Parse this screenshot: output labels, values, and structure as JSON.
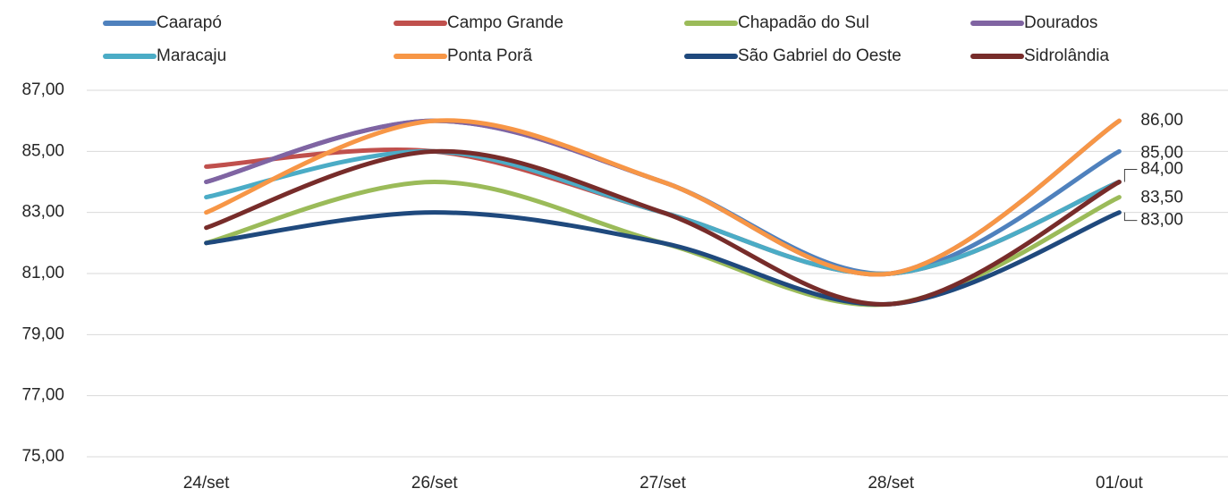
{
  "chart_data": {
    "type": "line",
    "categories": [
      "24/set",
      "26/set",
      "27/set",
      "28/set",
      "01/out"
    ],
    "ylim": [
      75,
      87
    ],
    "yticks": [
      {
        "value": 75,
        "label": "75,00"
      },
      {
        "value": 77,
        "label": "77,00"
      },
      {
        "value": 79,
        "label": "79,00"
      },
      {
        "value": 81,
        "label": "81,00"
      },
      {
        "value": 83,
        "label": "83,00"
      },
      {
        "value": 85,
        "label": "85,00"
      },
      {
        "value": 87,
        "label": "87,00"
      }
    ],
    "grid": true,
    "smooth": true,
    "legend": "top",
    "series": [
      {
        "name": "Caarapó",
        "color": "#4f81bd",
        "values": [
          84,
          86,
          84,
          81,
          85
        ],
        "value_labels": [
          null,
          null,
          null,
          null,
          "85,00"
        ]
      },
      {
        "name": "Campo Grande",
        "color": "#c0504d",
        "values": [
          84.5,
          85,
          83,
          81,
          84
        ]
      },
      {
        "name": "Chapadão do Sul",
        "color": "#9bbb59",
        "values": [
          82,
          84,
          82,
          80,
          83.5
        ],
        "value_labels": [
          null,
          null,
          null,
          null,
          "83,50"
        ]
      },
      {
        "name": "Dourados",
        "color": "#8064a2",
        "values": [
          84,
          86,
          84,
          81,
          86
        ]
      },
      {
        "name": "Maracaju",
        "color": "#4bacc6",
        "values": [
          83.5,
          85,
          83,
          81,
          84
        ]
      },
      {
        "name": "Ponta Porã",
        "color": "#f79646",
        "values": [
          83,
          86,
          84,
          81,
          86
        ],
        "value_labels": [
          null,
          null,
          null,
          null,
          "86,00"
        ]
      },
      {
        "name": "São Gabriel do Oeste",
        "color": "#1f497d",
        "values": [
          82,
          83,
          82,
          80,
          83
        ],
        "value_labels": [
          null,
          null,
          null,
          null,
          "83,00"
        ]
      },
      {
        "name": "Sidrolândia",
        "color": "#772c2a",
        "values": [
          82.5,
          85,
          83,
          80,
          84
        ],
        "value_labels": [
          null,
          null,
          null,
          null,
          "84,00"
        ]
      }
    ]
  }
}
